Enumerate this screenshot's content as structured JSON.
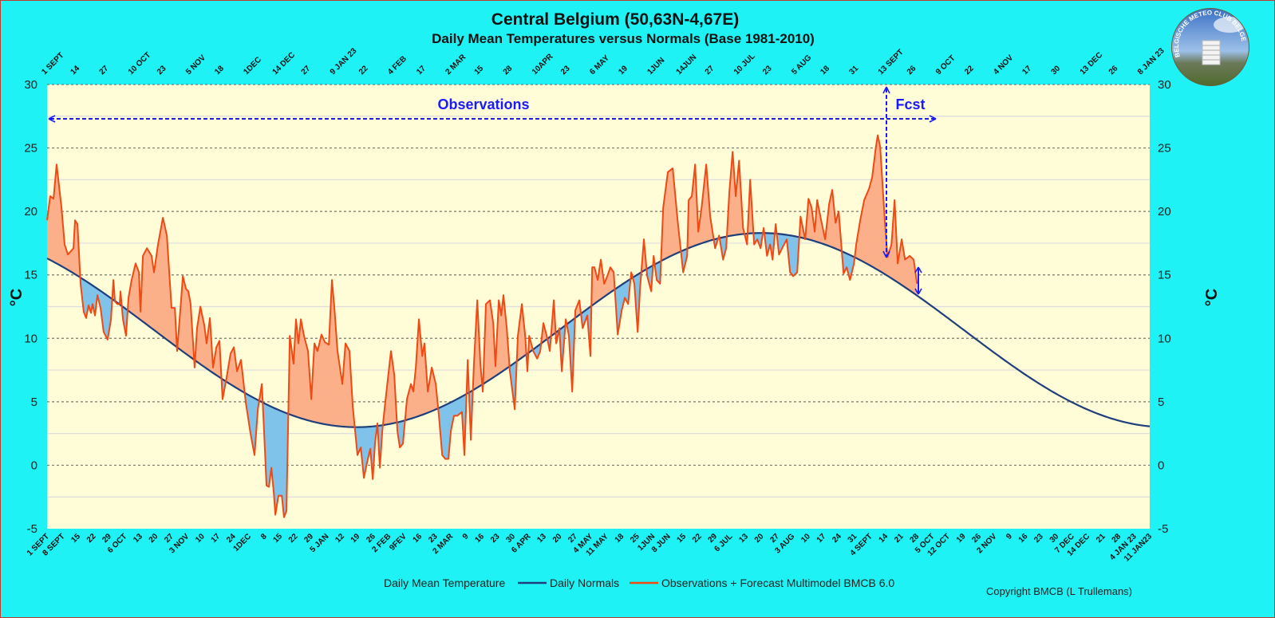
{
  "chart_data": {
    "type": "area",
    "title": "Central Belgium (50,63N-4,67E)",
    "subtitle": "Daily Mean Temperatures versus Normals (Base 1981-2010)",
    "ylabel": "°C",
    "ylabel_right": "°C",
    "ylim": [
      -5,
      30
    ],
    "yticks": [
      -5,
      0,
      5,
      10,
      15,
      20,
      25,
      30
    ],
    "x_unit": "days since 1 Sept",
    "xlim": [
      0,
      497
    ],
    "grid": true,
    "bottom_tick_step_days": 7,
    "top_tick_step_days": 13,
    "bottom_ticks": [
      "1 SEPT",
      "8 SEPT",
      "15",
      "22",
      "29",
      "6 OCT",
      "13",
      "20",
      "27",
      "3 NOV",
      "10",
      "17",
      "24",
      "1DEC",
      "8",
      "15",
      "22",
      "29",
      "5 JAN",
      "12",
      "19",
      "26",
      "2 FEB",
      "9FEV",
      "16",
      "23",
      "2 MAR",
      "9",
      "16",
      "23",
      "30",
      "6 APR",
      "13",
      "20",
      "27",
      "4 MAY",
      "11 MAY",
      "18",
      "25",
      "1JUN",
      "8 JUN",
      "15",
      "22",
      "29",
      "6 JUL",
      "13",
      "20",
      "27",
      "3 AUG",
      "10",
      "17",
      "24",
      "31",
      "4 SEPT",
      "14",
      "21",
      "28",
      "5 OCT",
      "12 OCT",
      "19",
      "26",
      "2 NOV",
      "9",
      "16",
      "23",
      "30",
      "7 DEC",
      "14 DEC",
      "21",
      "28",
      "4 JAN 23",
      "11 JAN23"
    ],
    "top_ticks": [
      "1 SEPT",
      "14",
      "27",
      "10 OCT",
      "23",
      "5 NOV",
      "18",
      "1DEC",
      "14 DEC",
      "27",
      "9 JAN 23",
      "22",
      "4 FEB",
      "17",
      "2 MAR",
      "15",
      "28",
      "10APR",
      "23",
      "6 MAY",
      "19",
      "1JUN",
      "14JUN",
      "27",
      "10 JUL",
      "23",
      "5 AUG",
      "18",
      "31",
      "13 SEPT",
      "26",
      "9 OCT",
      "22",
      "4 NOV",
      "17",
      "30",
      "13 DEC",
      "26",
      "8 JAN 23"
    ],
    "normals": {
      "name": "Daily Normals",
      "color": "#1f3f7a",
      "mean": 10.65,
      "amplitude": 7.65,
      "peak_day": 322,
      "period": 365
    },
    "observations": {
      "name": "Observations + Forecast Multimodel BMCB 6.0",
      "color": "#f04a14",
      "above_fill": "#fbb08a",
      "below_fill": "#7fc3ea",
      "points": [
        [
          0,
          19.3
        ],
        [
          1.4,
          21.2
        ],
        [
          2.9,
          21
        ],
        [
          4.3,
          23.7
        ],
        [
          6.5,
          20.3
        ],
        [
          7.9,
          17.4
        ],
        [
          9.4,
          16.6
        ],
        [
          11.9,
          17.1
        ],
        [
          12.6,
          19.3
        ],
        [
          13.7,
          19
        ],
        [
          15.1,
          14.3
        ],
        [
          16.5,
          12.1
        ],
        [
          17.6,
          11.6
        ],
        [
          18.7,
          12.6
        ],
        [
          19.8,
          12
        ],
        [
          20.5,
          12.7
        ],
        [
          21.6,
          11.8
        ],
        [
          22.7,
          13.4
        ],
        [
          24.1,
          12.4
        ],
        [
          25.5,
          10.5
        ],
        [
          27.3,
          9.9
        ],
        [
          28.8,
          11.5
        ],
        [
          29.9,
          14.6
        ],
        [
          30.6,
          12.9
        ],
        [
          31.7,
          12.7
        ],
        [
          32.7,
          12.7
        ],
        [
          33.1,
          13.7
        ],
        [
          34.2,
          11.5
        ],
        [
          35.6,
          10.2
        ],
        [
          36.7,
          13.2
        ],
        [
          38.1,
          14.6
        ],
        [
          39.9,
          15.9
        ],
        [
          41.4,
          15.2
        ],
        [
          42.1,
          12.1
        ],
        [
          43.2,
          16.5
        ],
        [
          45,
          17.1
        ],
        [
          47.1,
          16.5
        ],
        [
          48.2,
          15.2
        ],
        [
          50,
          17.4
        ],
        [
          52.2,
          19.5
        ],
        [
          54,
          18.1
        ],
        [
          56.1,
          12.4
        ],
        [
          57.6,
          12.4
        ],
        [
          58.6,
          9
        ],
        [
          60.4,
          13
        ],
        [
          61.2,
          14.9
        ],
        [
          62.6,
          13.9
        ],
        [
          63.7,
          13.7
        ],
        [
          64.7,
          12.7
        ],
        [
          66.5,
          7.7
        ],
        [
          67.6,
          10.8
        ],
        [
          69.1,
          12.5
        ],
        [
          70.9,
          11
        ],
        [
          71.9,
          9.6
        ],
        [
          73.4,
          11.6
        ],
        [
          74.8,
          7.7
        ],
        [
          76.3,
          9.3
        ],
        [
          77.7,
          9.8
        ],
        [
          79.1,
          5.2
        ],
        [
          80.9,
          6.9
        ],
        [
          82.7,
          8.8
        ],
        [
          84.2,
          9.3
        ],
        [
          85.6,
          7.4
        ],
        [
          87.4,
          8.3
        ],
        [
          89.6,
          4.9
        ],
        [
          91.7,
          2.5
        ],
        [
          93.5,
          0.8
        ],
        [
          95,
          4.4
        ],
        [
          96.8,
          6.4
        ],
        [
          97.8,
          2.7
        ],
        [
          98.9,
          -1.6
        ],
        [
          100,
          -1.7
        ],
        [
          101.1,
          -0.2
        ],
        [
          102.2,
          -2.2
        ],
        [
          102.9,
          -3.9
        ],
        [
          104.3,
          -2.4
        ],
        [
          105.8,
          -2.4
        ],
        [
          106.8,
          -4.1
        ],
        [
          107.9,
          -3.6
        ],
        [
          109.4,
          10.2
        ],
        [
          111.1,
          8
        ],
        [
          112.2,
          11.5
        ],
        [
          113.3,
          9.6
        ],
        [
          114.4,
          11.5
        ],
        [
          115.8,
          10.2
        ],
        [
          117.6,
          9
        ],
        [
          119.1,
          5.2
        ],
        [
          120.5,
          9.6
        ],
        [
          121.9,
          9
        ],
        [
          123.7,
          10.3
        ],
        [
          125.2,
          9.7
        ],
        [
          127,
          9.5
        ],
        [
          128.4,
          14.6
        ],
        [
          129.5,
          12.4
        ],
        [
          130.9,
          9
        ],
        [
          133.1,
          6.4
        ],
        [
          134.5,
          9.6
        ],
        [
          136.3,
          9
        ],
        [
          137.8,
          4.6
        ],
        [
          139.9,
          0.8
        ],
        [
          141.4,
          1.4
        ],
        [
          142.8,
          -1
        ],
        [
          144.2,
          0.2
        ],
        [
          145.7,
          1.3
        ],
        [
          146.8,
          -1.1
        ],
        [
          147.8,
          1.7
        ],
        [
          148.9,
          3.3
        ],
        [
          150,
          -0.2
        ],
        [
          151.1,
          2.7
        ],
        [
          152.2,
          4.6
        ],
        [
          153.6,
          6.8
        ],
        [
          155,
          9
        ],
        [
          156.5,
          7.1
        ],
        [
          157.9,
          2.7
        ],
        [
          159,
          1.4
        ],
        [
          160.4,
          1.7
        ],
        [
          162.2,
          5.2
        ],
        [
          164,
          6.4
        ],
        [
          165.1,
          5.8
        ],
        [
          166.2,
          7.7
        ],
        [
          167.6,
          11.5
        ],
        [
          169.1,
          8.6
        ],
        [
          170.1,
          9.6
        ],
        [
          171.6,
          5.8
        ],
        [
          173.4,
          7.7
        ],
        [
          175.2,
          6.4
        ],
        [
          176.6,
          3.9
        ],
        [
          178.1,
          0.8
        ],
        [
          179.5,
          0.5
        ],
        [
          180.9,
          0.5
        ],
        [
          182,
          2.7
        ],
        [
          183.4,
          3.9
        ],
        [
          184.9,
          3.9
        ],
        [
          187,
          4.2
        ],
        [
          188.1,
          0.8
        ],
        [
          189.6,
          8.3
        ],
        [
          191,
          2
        ],
        [
          192.4,
          8
        ],
        [
          193.9,
          13
        ],
        [
          195.3,
          8
        ],
        [
          196.4,
          5.8
        ],
        [
          197.8,
          12.7
        ],
        [
          199.6,
          13
        ],
        [
          201.1,
          11.2
        ],
        [
          202.1,
          7.8
        ],
        [
          203.6,
          13
        ],
        [
          204.7,
          11.8
        ],
        [
          205.7,
          13.4
        ],
        [
          207.2,
          10.8
        ],
        [
          208.6,
          7.4
        ],
        [
          210.8,
          4.4
        ],
        [
          212.2,
          10.2
        ],
        [
          214,
          12.7
        ],
        [
          215.5,
          10.2
        ],
        [
          216.5,
          7.4
        ],
        [
          217.3,
          10.2
        ],
        [
          219.1,
          9
        ],
        [
          220.9,
          8.4
        ],
        [
          222.3,
          9
        ],
        [
          223.7,
          11.2
        ],
        [
          225.2,
          10.2
        ],
        [
          226.6,
          9
        ],
        [
          228.4,
          13
        ],
        [
          229.5,
          9.6
        ],
        [
          230.9,
          10.8
        ],
        [
          232,
          7.4
        ],
        [
          233.8,
          11.5
        ],
        [
          235.2,
          10.2
        ],
        [
          236.7,
          5.8
        ],
        [
          238.1,
          12.2
        ],
        [
          239.9,
          13
        ],
        [
          241.4,
          10.8
        ],
        [
          243.5,
          11.8
        ],
        [
          244.9,
          8.6
        ],
        [
          245.7,
          15.6
        ],
        [
          246.7,
          15.6
        ],
        [
          248.2,
          14.6
        ],
        [
          249.6,
          16.2
        ],
        [
          251.1,
          14.3
        ],
        [
          252.5,
          14.9
        ],
        [
          253.9,
          15.6
        ],
        [
          255.4,
          15.2
        ],
        [
          257.2,
          10.3
        ],
        [
          259,
          12.2
        ],
        [
          260.4,
          13.2
        ],
        [
          261.9,
          12.7
        ],
        [
          263.3,
          15.2
        ],
        [
          264.7,
          14.3
        ],
        [
          266.2,
          10.5
        ],
        [
          267.3,
          14
        ],
        [
          269,
          17.8
        ],
        [
          270.5,
          14.9
        ],
        [
          272.3,
          13.7
        ],
        [
          273.4,
          16.5
        ],
        [
          274.8,
          14.6
        ],
        [
          276.3,
          14.3
        ],
        [
          277.7,
          20.3
        ],
        [
          279.8,
          23.1
        ],
        [
          282,
          23.4
        ],
        [
          284.2,
          19.3
        ],
        [
          286.7,
          15.2
        ],
        [
          288.5,
          16.5
        ],
        [
          289.2,
          20.9
        ],
        [
          290.6,
          21.2
        ],
        [
          292.1,
          23.7
        ],
        [
          293.5,
          18.4
        ],
        [
          295,
          20.3
        ],
        [
          297.1,
          23.7
        ],
        [
          298.9,
          19.6
        ],
        [
          301.1,
          17.1
        ],
        [
          302.9,
          18.1
        ],
        [
          304.7,
          16.2
        ],
        [
          306.1,
          17.1
        ],
        [
          307.5,
          21.5
        ],
        [
          309,
          24.7
        ],
        [
          310.4,
          21.2
        ],
        [
          311.9,
          24
        ],
        [
          313.7,
          18.7
        ],
        [
          315.5,
          17.4
        ],
        [
          316.9,
          22.5
        ],
        [
          318.7,
          17.4
        ],
        [
          320.1,
          17.8
        ],
        [
          321.6,
          17.1
        ],
        [
          323,
          18.7
        ],
        [
          324.5,
          16.5
        ],
        [
          325.9,
          17.4
        ],
        [
          327,
          16.2
        ],
        [
          328.4,
          19
        ],
        [
          329.9,
          16.6
        ],
        [
          331.3,
          17.1
        ],
        [
          333.4,
          17.8
        ],
        [
          334.9,
          15.2
        ],
        [
          336.3,
          14.9
        ],
        [
          338.1,
          15.2
        ],
        [
          339.6,
          19.6
        ],
        [
          341.7,
          17.8
        ],
        [
          343.2,
          21
        ],
        [
          344.6,
          20.3
        ],
        [
          346,
          18.4
        ],
        [
          347.1,
          20.9
        ],
        [
          348.9,
          19.3
        ],
        [
          350.7,
          17.8
        ],
        [
          352.5,
          20.6
        ],
        [
          353.9,
          21.7
        ],
        [
          355.4,
          19.1
        ],
        [
          356.8,
          20
        ],
        [
          359,
          15.1
        ],
        [
          360.4,
          15.6
        ],
        [
          361.9,
          14.6
        ],
        [
          363.7,
          15.9
        ],
        [
          364.7,
          17.4
        ],
        [
          366.5,
          19.3
        ],
        [
          368.3,
          20.9
        ],
        [
          370.5,
          21.8
        ],
        [
          371.9,
          22.7
        ],
        [
          373.5,
          25
        ],
        [
          374.4,
          26
        ],
        [
          375.5,
          25.1
        ],
        [
          377.7,
          19
        ],
        [
          378.8,
          16.4
        ],
        [
          380.6,
          17.4
        ],
        [
          382,
          20.9
        ],
        [
          383.4,
          15.9
        ],
        [
          385.2,
          17.8
        ],
        [
          386.7,
          16.2
        ],
        [
          388.8,
          16.5
        ],
        [
          390.6,
          16.2
        ],
        [
          392.1,
          14.3
        ]
      ]
    },
    "legend": {
      "placement": "bottom-center",
      "entries": [
        "Daily Mean Temperature",
        "Daily Normals",
        "Observations + Forecast Multimodel BMCB 6.0"
      ]
    },
    "annotations": {
      "observations_label": "Observations",
      "forecast_label": "Fcst",
      "forecast_start_day": 378,
      "forecast_end_day": 392,
      "annotation_color": "#1a1aff"
    }
  },
  "copyright": "Copyright BMCB (L Trullemans)",
  "logo_text": "BELGISCHE METEO CLUB BELGE"
}
